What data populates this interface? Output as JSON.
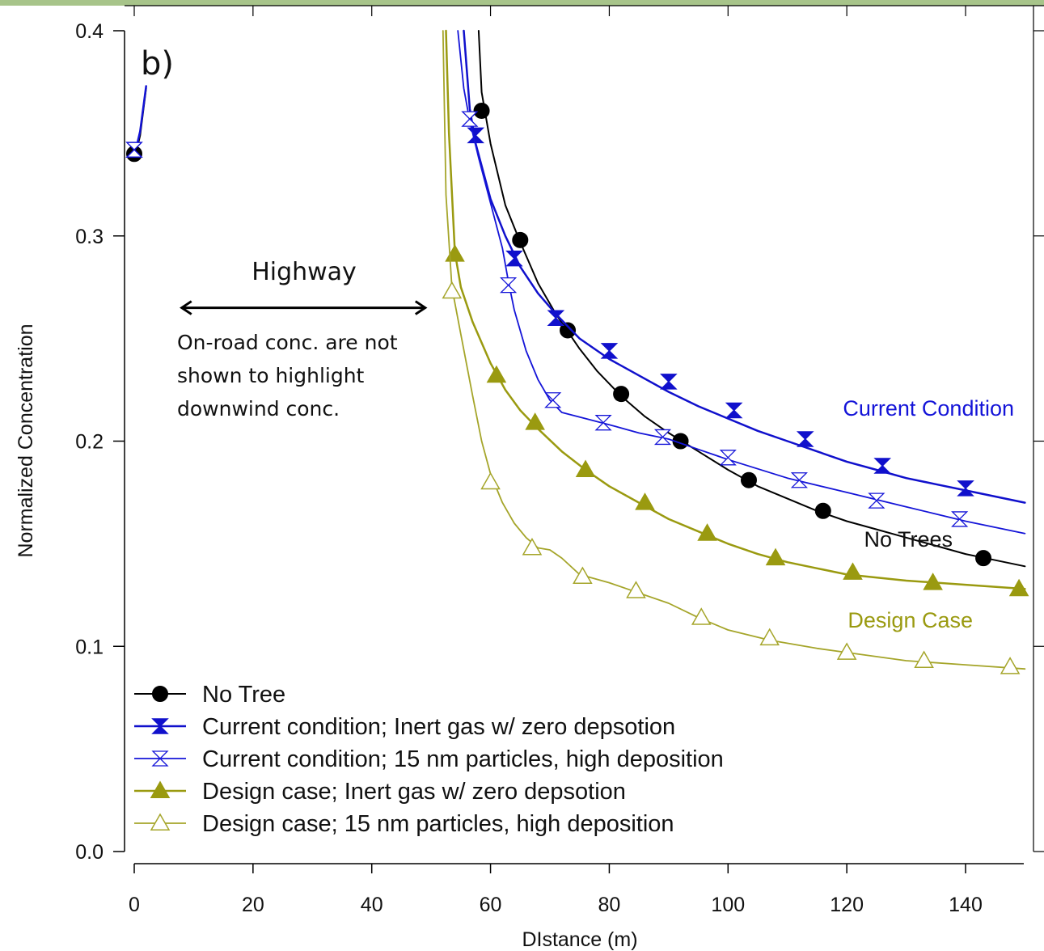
{
  "chart_data": {
    "type": "line",
    "xlabel": "DIstance (m)",
    "ylabel": "Normalized Concentration",
    "xlim": [
      -2,
      151
    ],
    "ylim": [
      -0.006,
      0.404
    ],
    "xticks": [
      0,
      20,
      40,
      60,
      80,
      100,
      120,
      140
    ],
    "xtick_labels": [
      "0",
      "20",
      "40",
      "60",
      "80",
      "100",
      "120",
      "140"
    ],
    "yticks": [
      0.0,
      0.1,
      0.2,
      0.3,
      0.4
    ],
    "ytick_labels": [
      "0.0",
      "0.1",
      "0.2",
      "0.3",
      "0.4"
    ],
    "grid": false,
    "legend_position": "bottom-left",
    "series": [
      {
        "name": "No Tree",
        "color": "#000000",
        "marker": "filled-circle",
        "line_width": 2,
        "curve": [
          [
            0,
            0.34
          ],
          [
            0.5,
            0.343
          ],
          [
            1,
            0.349
          ],
          [
            2,
            0.372
          ],
          [
            58,
            0.404
          ],
          [
            58.5,
            0.37
          ],
          [
            60,
            0.345
          ],
          [
            62.5,
            0.315
          ],
          [
            65,
            0.297
          ],
          [
            68,
            0.277
          ],
          [
            71,
            0.262
          ],
          [
            75,
            0.245
          ],
          [
            78,
            0.234
          ],
          [
            82,
            0.222
          ],
          [
            86,
            0.212
          ],
          [
            90,
            0.204
          ],
          [
            95,
            0.195
          ],
          [
            100,
            0.186
          ],
          [
            105,
            0.178
          ],
          [
            110,
            0.172
          ],
          [
            115,
            0.166
          ],
          [
            120,
            0.161
          ],
          [
            125,
            0.157
          ],
          [
            130,
            0.153
          ],
          [
            135,
            0.149
          ],
          [
            140,
            0.145
          ],
          [
            145,
            0.142
          ],
          [
            150,
            0.139
          ]
        ],
        "markers": [
          [
            0,
            0.34
          ],
          [
            58.5,
            0.361
          ],
          [
            65,
            0.298
          ],
          [
            73,
            0.254
          ],
          [
            82,
            0.223
          ],
          [
            92,
            0.2
          ],
          [
            103.5,
            0.181
          ],
          [
            116,
            0.166
          ],
          [
            143,
            0.143
          ]
        ]
      },
      {
        "name": "Current condition; Inert gas w/ zero depsotion",
        "color": "#1010cc",
        "marker": "filled-hourglass",
        "line_width": 2.5,
        "curve": [
          [
            0,
            0.342
          ],
          [
            0.5,
            0.345
          ],
          [
            1,
            0.351
          ],
          [
            2,
            0.373
          ],
          [
            55.5,
            0.404
          ],
          [
            56.5,
            0.362
          ],
          [
            57.5,
            0.345
          ],
          [
            60,
            0.318
          ],
          [
            62.5,
            0.3
          ],
          [
            65,
            0.285
          ],
          [
            68,
            0.272
          ],
          [
            71,
            0.262
          ],
          [
            75,
            0.25
          ],
          [
            80,
            0.24
          ],
          [
            85,
            0.232
          ],
          [
            90,
            0.224
          ],
          [
            95,
            0.217
          ],
          [
            100,
            0.211
          ],
          [
            105,
            0.205
          ],
          [
            110,
            0.2
          ],
          [
            115,
            0.195
          ],
          [
            120,
            0.19
          ],
          [
            125,
            0.186
          ],
          [
            130,
            0.182
          ],
          [
            135,
            0.179
          ],
          [
            140,
            0.176
          ],
          [
            145,
            0.173
          ],
          [
            150,
            0.17
          ]
        ],
        "markers": [
          [
            0,
            0.342
          ],
          [
            57.5,
            0.349
          ],
          [
            64,
            0.289
          ],
          [
            71,
            0.26
          ],
          [
            80,
            0.244
          ],
          [
            90,
            0.229
          ],
          [
            101,
            0.215
          ],
          [
            113,
            0.201
          ],
          [
            126,
            0.188
          ],
          [
            140,
            0.177
          ]
        ]
      },
      {
        "name": "Current condition; 15 nm particles, high deposition",
        "color": "#1414d8",
        "marker": "open-hourglass",
        "line_width": 1.8,
        "curve": [
          [
            0,
            0.342
          ],
          [
            0.5,
            0.345
          ],
          [
            1,
            0.351
          ],
          [
            2,
            0.373
          ],
          [
            54.5,
            0.404
          ],
          [
            55.5,
            0.372
          ],
          [
            56.5,
            0.356
          ],
          [
            58,
            0.338
          ],
          [
            60,
            0.316
          ],
          [
            62,
            0.294
          ],
          [
            63,
            0.278
          ],
          [
            64,
            0.264
          ],
          [
            66,
            0.244
          ],
          [
            68,
            0.23
          ],
          [
            70,
            0.22
          ],
          [
            72,
            0.214
          ],
          [
            76,
            0.211
          ],
          [
            80,
            0.208
          ],
          [
            85,
            0.204
          ],
          [
            90,
            0.201
          ],
          [
            95,
            0.196
          ],
          [
            100,
            0.191
          ],
          [
            110,
            0.182
          ],
          [
            120,
            0.175
          ],
          [
            130,
            0.168
          ],
          [
            140,
            0.161
          ],
          [
            150,
            0.155
          ]
        ],
        "markers": [
          [
            0,
            0.342
          ],
          [
            56.5,
            0.357
          ],
          [
            63,
            0.276
          ],
          [
            70.5,
            0.22
          ],
          [
            79,
            0.209
          ],
          [
            89,
            0.202
          ],
          [
            100,
            0.192
          ],
          [
            112,
            0.181
          ],
          [
            125,
            0.171
          ],
          [
            139,
            0.162
          ]
        ]
      },
      {
        "name": "Design case;  Inert gas w/ zero depsotion",
        "color": "#9a9a10",
        "marker": "filled-triangle",
        "line_width": 2.5,
        "curve": [
          [
            52.5,
            0.404
          ],
          [
            53,
            0.35
          ],
          [
            54,
            0.292
          ],
          [
            55,
            0.275
          ],
          [
            57,
            0.258
          ],
          [
            60,
            0.238
          ],
          [
            62.5,
            0.225
          ],
          [
            65,
            0.215
          ],
          [
            68,
            0.206
          ],
          [
            72,
            0.195
          ],
          [
            76,
            0.186
          ],
          [
            80,
            0.178
          ],
          [
            85,
            0.17
          ],
          [
            90,
            0.162
          ],
          [
            95,
            0.156
          ],
          [
            100,
            0.15
          ],
          [
            105,
            0.145
          ],
          [
            110,
            0.141
          ],
          [
            115,
            0.138
          ],
          [
            120,
            0.135
          ],
          [
            130,
            0.132
          ],
          [
            140,
            0.13
          ],
          [
            150,
            0.128
          ]
        ],
        "markers": [
          [
            54,
            0.291
          ],
          [
            61,
            0.232
          ],
          [
            67.5,
            0.209
          ],
          [
            76,
            0.186
          ],
          [
            86,
            0.17
          ],
          [
            96.5,
            0.155
          ],
          [
            108,
            0.143
          ],
          [
            121,
            0.136
          ],
          [
            134.5,
            0.131
          ],
          [
            149,
            0.128
          ]
        ]
      },
      {
        "name": "Design case;  15 nm particles, high deposition",
        "color": "#a5a52a",
        "marker": "open-triangle",
        "line_width": 1.8,
        "curve": [
          [
            52,
            0.404
          ],
          [
            52.5,
            0.32
          ],
          [
            53.5,
            0.275
          ],
          [
            55,
            0.252
          ],
          [
            57,
            0.222
          ],
          [
            58.5,
            0.2
          ],
          [
            60,
            0.184
          ],
          [
            62,
            0.17
          ],
          [
            64,
            0.16
          ],
          [
            66,
            0.153
          ],
          [
            68,
            0.148
          ],
          [
            70,
            0.147
          ],
          [
            72,
            0.143
          ],
          [
            75,
            0.135
          ],
          [
            80,
            0.131
          ],
          [
            85,
            0.126
          ],
          [
            90,
            0.121
          ],
          [
            95,
            0.114
          ],
          [
            100,
            0.108
          ],
          [
            107,
            0.103
          ],
          [
            115,
            0.099
          ],
          [
            120,
            0.097
          ],
          [
            130,
            0.093
          ],
          [
            140,
            0.091
          ],
          [
            150,
            0.089
          ]
        ],
        "markers": [
          [
            53.5,
            0.273
          ],
          [
            60,
            0.18
          ],
          [
            67,
            0.148
          ],
          [
            75.5,
            0.134
          ],
          [
            84.5,
            0.127
          ],
          [
            95.5,
            0.114
          ],
          [
            107,
            0.104
          ],
          [
            120,
            0.097
          ],
          [
            133,
            0.093
          ],
          [
            147.5,
            0.09
          ]
        ]
      }
    ],
    "annotations": {
      "panel_label": "b)",
      "highway_label": "Highway",
      "highway_arrow_x": [
        8,
        49
      ],
      "highway_arrow_y": 0.265,
      "note_lines": [
        "On-road conc. are not",
        "shown to highlight",
        "downwind conc."
      ],
      "current_condition_label": "Current Condition",
      "current_condition_color": "#1414d8",
      "no_trees_label": "No Trees",
      "no_trees_color": "#111111",
      "design_case_label": "Design Case",
      "design_case_color": "#9a9a10"
    }
  }
}
